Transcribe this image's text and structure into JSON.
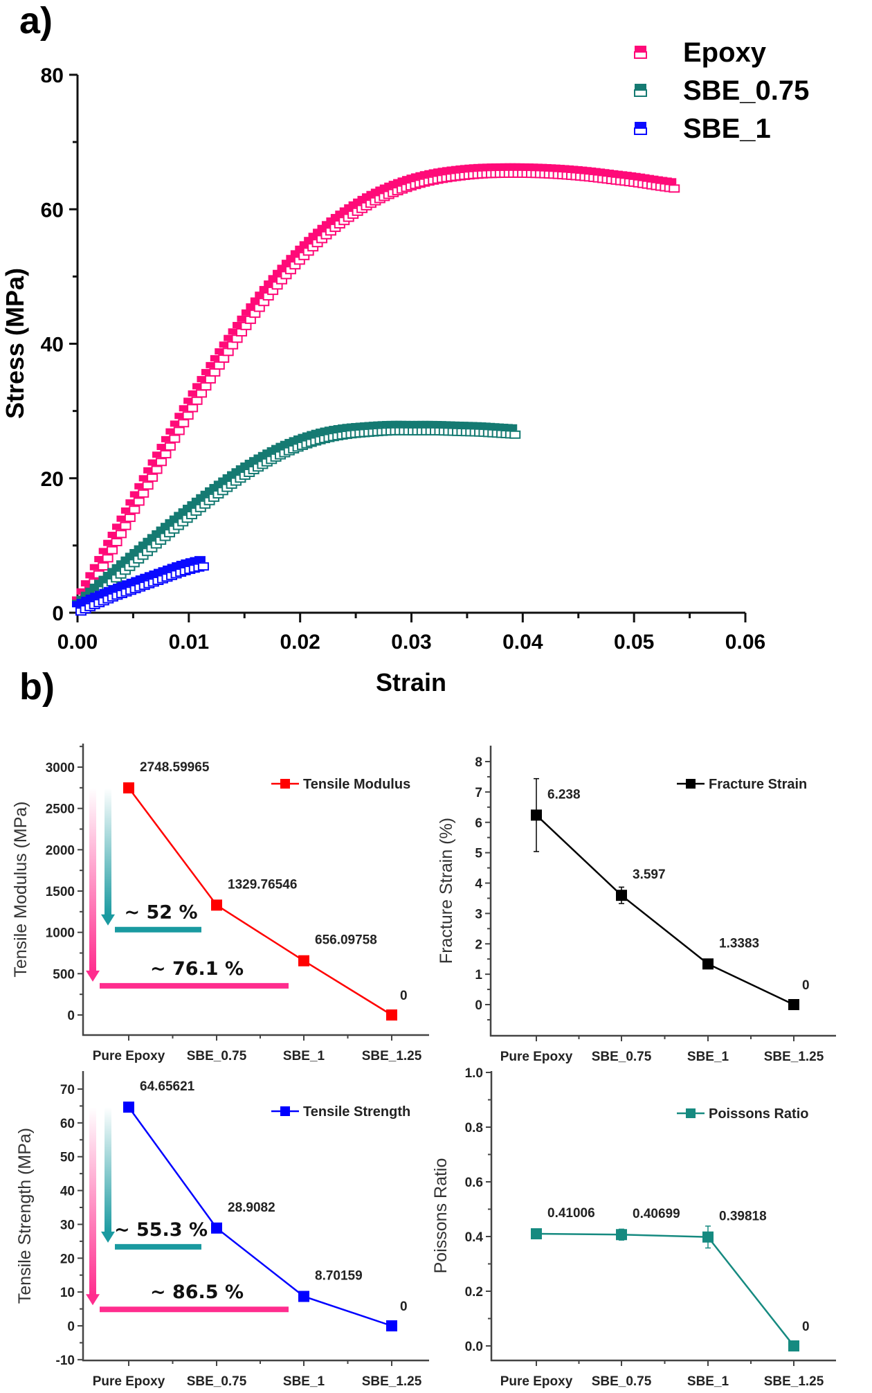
{
  "figure": {
    "panel_a_label": "a)",
    "panel_b_label": "b)"
  },
  "colors": {
    "epoxy": "#ff0a78",
    "sbe075": "#157a72",
    "sbe1": "#0a0aff",
    "modulus": "#ff0000",
    "strength": "#0000ff",
    "fracture": "#000000",
    "poisson": "#168a80",
    "arrow_pink": "#ff2d8e",
    "arrow_teal": "#1a9aa0"
  },
  "chart_data": [
    {
      "id": "stress_strain",
      "type": "scatter",
      "title": "",
      "xlabel": "Strain",
      "ylabel": "Stress (MPa)",
      "xlim": [
        0,
        0.06
      ],
      "ylim": [
        0,
        80
      ],
      "xticks": [
        "0.00",
        "0.01",
        "0.02",
        "0.03",
        "0.04",
        "0.05",
        "0.06"
      ],
      "yticks": [
        "0",
        "20",
        "40",
        "60",
        "80"
      ],
      "legend_position": "top-right",
      "series": [
        {
          "name": "Epoxy",
          "color_key": "epoxy",
          "x": [
            0.0,
            0.002,
            0.004,
            0.006,
            0.008,
            0.01,
            0.012,
            0.014,
            0.016,
            0.018,
            0.02,
            0.022,
            0.024,
            0.026,
            0.028,
            0.03,
            0.032,
            0.034,
            0.036,
            0.038,
            0.04,
            0.042,
            0.044,
            0.046,
            0.048,
            0.05,
            0.052,
            0.0533
          ],
          "y": [
            1.5,
            7.5,
            13.5,
            19.5,
            25.3,
            31.0,
            36.3,
            41.3,
            45.9,
            50.0,
            53.6,
            56.7,
            59.3,
            61.4,
            63.0,
            64.2,
            65.0,
            65.5,
            65.8,
            65.9,
            65.9,
            65.8,
            65.6,
            65.3,
            64.9,
            64.5,
            64.0,
            63.7
          ]
        },
        {
          "name": "SBE_0.75",
          "color_key": "sbe075",
          "x": [
            0.0,
            0.002,
            0.004,
            0.006,
            0.008,
            0.01,
            0.012,
            0.014,
            0.016,
            0.018,
            0.02,
            0.022,
            0.024,
            0.026,
            0.028,
            0.03,
            0.032,
            0.034,
            0.036,
            0.038,
            0.039
          ],
          "y": [
            1.0,
            4.0,
            6.9,
            9.7,
            12.5,
            15.2,
            17.8,
            20.2,
            22.3,
            24.1,
            25.5,
            26.5,
            27.1,
            27.4,
            27.6,
            27.6,
            27.6,
            27.5,
            27.4,
            27.2,
            27.1
          ]
        },
        {
          "name": "SBE_1",
          "color_key": "sbe1",
          "x": [
            0.0,
            0.001,
            0.002,
            0.003,
            0.004,
            0.005,
            0.006,
            0.007,
            0.008,
            0.009,
            0.01,
            0.011
          ],
          "y": [
            0.8,
            1.6,
            2.3,
            3.0,
            3.6,
            4.2,
            4.8,
            5.4,
            6.0,
            6.6,
            7.1,
            7.5
          ]
        }
      ]
    },
    {
      "id": "tensile_modulus",
      "type": "line",
      "xlabel": "",
      "ylabel": "Tensile Modulus (MPa)",
      "ylim": [
        -300,
        3250
      ],
      "yticks": [
        0,
        500,
        1000,
        1500,
        2000,
        2500,
        3000
      ],
      "categories": [
        "Pure Epoxy",
        "SBE_0.75",
        "SBE_1",
        "SBE_1.25"
      ],
      "series": [
        {
          "name": "Tensile Modulus",
          "color_key": "modulus",
          "values": [
            2748.59965,
            1329.76546,
            656.09758,
            0
          ]
        }
      ],
      "data_labels": [
        "2748.59965",
        "1329.76546",
        "656.09758",
        "0"
      ],
      "legend_position": "top-right",
      "annotations": [
        {
          "text": "~ 52 %",
          "color_key": "arrow_teal",
          "from_value": 2748.59965,
          "to_value": 1100,
          "bar_value": 1100,
          "bar_to_category": 1
        },
        {
          "text": "~ 76.1 %",
          "color_key": "arrow_pink",
          "from_value": 2748.59965,
          "to_value": 420,
          "bar_value": 420,
          "bar_to_category": 2
        }
      ]
    },
    {
      "id": "fracture_strain",
      "type": "line",
      "xlabel": "",
      "ylabel": "Fracture Strain (%)",
      "ylim": [
        -1,
        8.5
      ],
      "yticks": [
        0,
        1,
        2,
        3,
        4,
        5,
        6,
        7,
        8
      ],
      "categories": [
        "Pure Epoxy",
        "SBE_0.75",
        "SBE_1",
        "SBE_1.25"
      ],
      "series": [
        {
          "name": "Fracture Strain",
          "color_key": "fracture",
          "values": [
            6.238,
            3.597,
            1.3383,
            0
          ],
          "error": [
            1.2,
            0.27,
            0.12,
            0
          ]
        }
      ],
      "data_labels": [
        "6.238",
        "3.597",
        "1.3383",
        "0"
      ],
      "legend_position": "top-right"
    },
    {
      "id": "tensile_strength",
      "type": "line",
      "xlabel": "",
      "ylabel": "Tensile Strength (MPa)",
      "ylim": [
        -10,
        75
      ],
      "yticks": [
        -10,
        0,
        10,
        20,
        30,
        40,
        50,
        60,
        70
      ],
      "categories": [
        "Pure Epoxy",
        "SBE_0.75",
        "SBE_1",
        "SBE_1.25"
      ],
      "series": [
        {
          "name": "Tensile Strength",
          "color_key": "strength",
          "values": [
            64.65621,
            28.9082,
            8.70159,
            0
          ]
        }
      ],
      "data_labels": [
        "64.65621",
        "28.9082",
        "8.70159",
        "0"
      ],
      "legend_position": "top-right",
      "annotations": [
        {
          "text": "~ 55.3 %",
          "color_key": "arrow_teal",
          "from_value": 64.65621,
          "to_value": 25,
          "bar_value": 25,
          "bar_to_category": 1
        },
        {
          "text": "~ 86.5 %",
          "color_key": "arrow_pink",
          "from_value": 64.65621,
          "to_value": 6.5,
          "bar_value": 6.5,
          "bar_to_category": 2
        }
      ]
    },
    {
      "id": "poissons_ratio",
      "type": "line",
      "xlabel": "",
      "ylabel": "Poissons Ratio",
      "ylim": [
        -0.05,
        1.0
      ],
      "yticks": [
        "0.0",
        "0.2",
        "0.4",
        "0.6",
        "0.8",
        "1.0"
      ],
      "categories": [
        "Pure Epoxy",
        "SBE_0.75",
        "SBE_1",
        "SBE_1.25"
      ],
      "series": [
        {
          "name": "Poissons Ratio",
          "color_key": "poisson",
          "values": [
            0.41006,
            0.40699,
            0.39818,
            0
          ],
          "error": [
            0.0,
            0.02,
            0.04,
            0
          ]
        }
      ],
      "data_labels": [
        "0.41006",
        "0.40699",
        "0.39818",
        "0"
      ],
      "legend_position": "top-right"
    }
  ]
}
